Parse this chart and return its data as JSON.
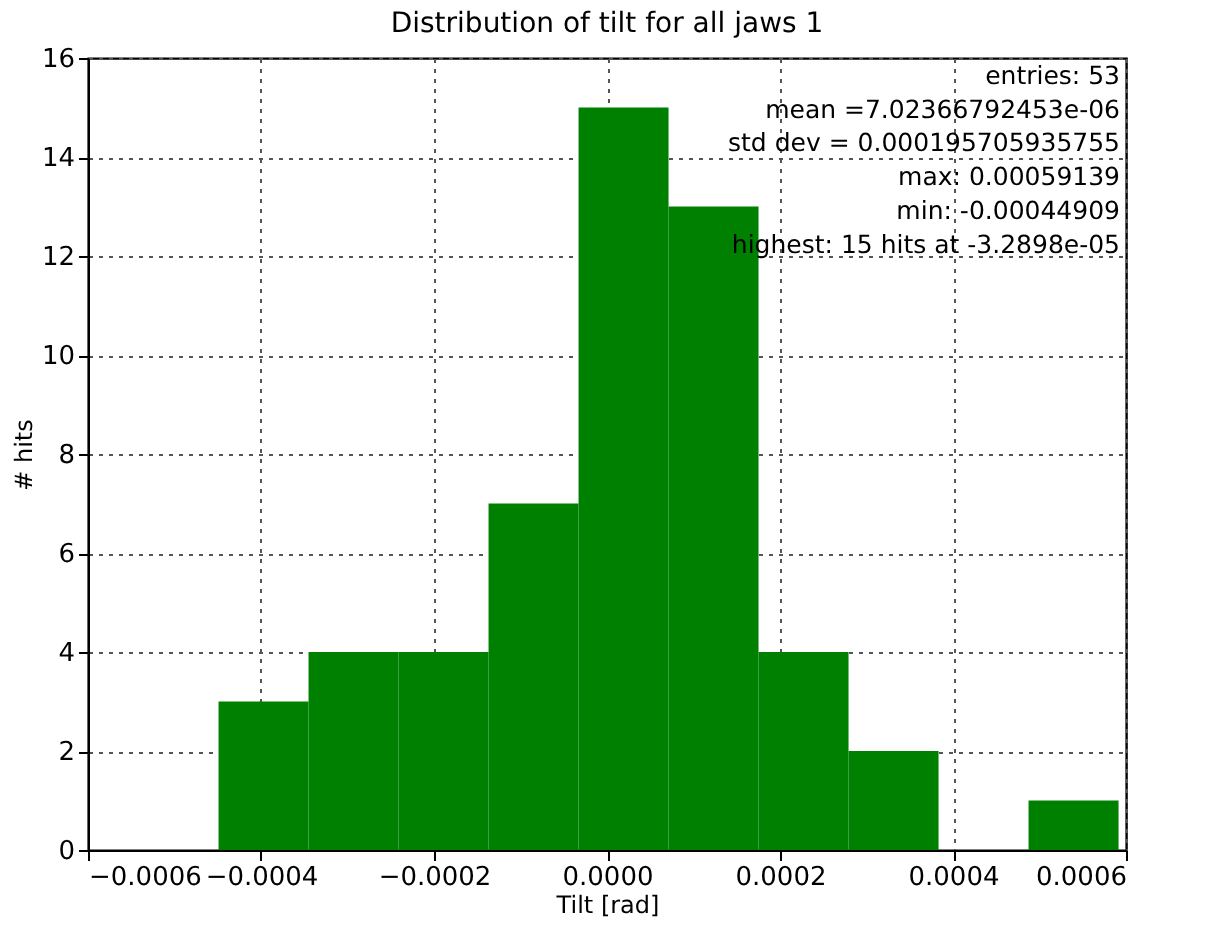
{
  "chart_data": {
    "type": "histogram",
    "title": "Distribution of tilt for all jaws 1",
    "xlabel": "Tilt [rad]",
    "ylabel": "# hits",
    "bins": [
      -0.00044909,
      -0.000345042,
      -0.000240994,
      -0.000136946,
      -3.2898e-05,
      7.115e-05,
      0.000175198,
      0.000279246,
      0.000383294,
      0.000487342,
      0.00059139
    ],
    "values": [
      3,
      4,
      4,
      7,
      15,
      13,
      4,
      2,
      0,
      1
    ],
    "color": "#008000",
    "xlim": [
      -0.0006,
      0.0006
    ],
    "xticks": [
      {
        "value": -0.0006,
        "label": "−0.0006"
      },
      {
        "value": -0.0004,
        "label": "−0.0004"
      },
      {
        "value": -0.0002,
        "label": "−0.0002"
      },
      {
        "value": 0,
        "label": "0.0000"
      },
      {
        "value": 0.0002,
        "label": "0.0002"
      },
      {
        "value": 0.0004,
        "label": "0.0004"
      },
      {
        "value": 0.0006,
        "label": "0.0006"
      }
    ],
    "ylim": [
      0,
      16
    ],
    "yticks": [
      0,
      2,
      4,
      6,
      8,
      10,
      12,
      14,
      16
    ],
    "grid": true,
    "annotations": [
      "entries: 53",
      "mean =7.02366792453e-06",
      "std dev = 0.000195705935755",
      "max: 0.00059139",
      "min: -0.00044909",
      "highest: 15 hits at -3.2898e-05"
    ]
  }
}
